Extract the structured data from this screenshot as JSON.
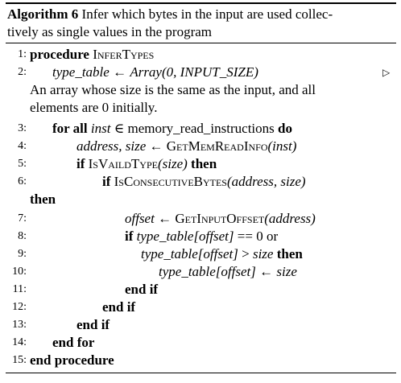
{
  "caption": {
    "label": "Algorithm 6",
    "title_line1": "Infer which bytes in the input are used collec-",
    "title_line2": "tively as single values in the program"
  },
  "lines": {
    "l1": {
      "num": "1:",
      "kw": "procedure",
      "name": "InferTypes"
    },
    "l2": {
      "num": "2:",
      "lhs": "type_table",
      "arrow": "←",
      "rhs": "Array(0, INPUT_SIZE)",
      "tri": "▷"
    },
    "comment": {
      "line1": "An array whose size is the same as the input, and all",
      "line2": "elements are 0 initially."
    },
    "l3": {
      "num": "3:",
      "kw1": "for all",
      "var": "inst",
      "op": "∈",
      "set": "memory_read_instructions",
      "kw2": "do"
    },
    "l4": {
      "num": "4:",
      "lhs": "address, size",
      "arrow": "←",
      "fn": "GetMemReadInfo",
      "arg": "(inst)"
    },
    "l5": {
      "num": "5:",
      "kw1": "if",
      "fn": "IsVaildType",
      "arg": "(size)",
      "kw2": "then"
    },
    "l6": {
      "num": "6:",
      "kw1": "if",
      "fn": "IsConsecutiveBytes",
      "arg": "(address, size)",
      "kw2": "then"
    },
    "l7": {
      "num": "7:",
      "lhs": "offset",
      "arrow": "←",
      "fn": "GetInputOffset",
      "arg": "(address)"
    },
    "l8": {
      "num": "8:",
      "kw1": "if",
      "expr": "type_table[offset]",
      "op": "==",
      "val": "0",
      "kw2": "or"
    },
    "l9": {
      "num": "9:",
      "expr": "type_table[offset]",
      "op": ">",
      "val": "size",
      "kw2": "then"
    },
    "l10": {
      "num": "10:",
      "expr": "type_table[offset]",
      "arrow": "←",
      "val": "size"
    },
    "l11": {
      "num": "11:",
      "kw": "end if"
    },
    "l12": {
      "num": "12:",
      "kw": "end if"
    },
    "l13": {
      "num": "13:",
      "kw": "end if"
    },
    "l14": {
      "num": "14:",
      "kw": "end for"
    },
    "l15": {
      "num": "15:",
      "kw": "end procedure"
    }
  }
}
